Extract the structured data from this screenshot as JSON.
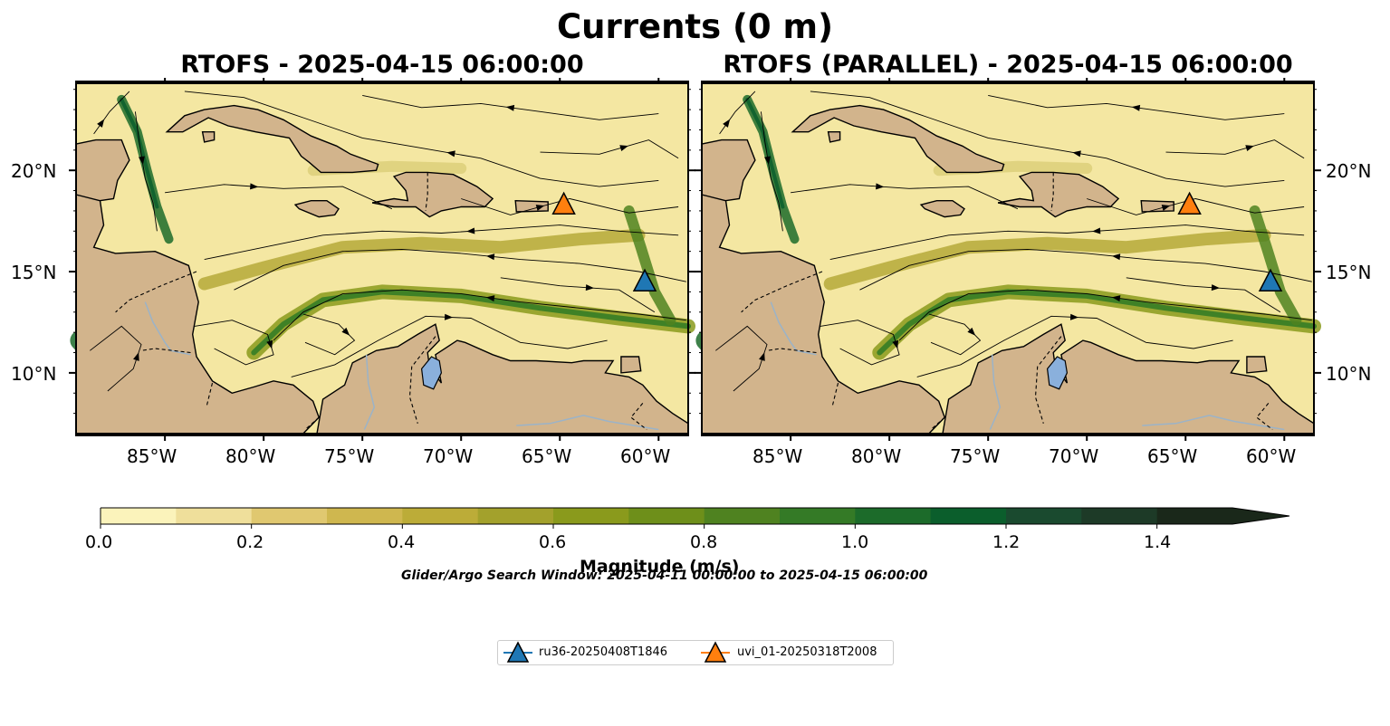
{
  "figure": {
    "title": "Currents (0 m)",
    "window_text": "Glider/Argo Search Window: 2025-04-11 00:00:00 to 2025-04-15 06:00:00"
  },
  "panels": [
    {
      "title": "RTOFS - 2025-04-15 06:00:00",
      "lat_ticks_side": "left"
    },
    {
      "title": "RTOFS (PARALLEL) - 2025-04-15 06:00:00",
      "lat_ticks_side": "right"
    }
  ],
  "map_extent": {
    "lon": [
      -89.5,
      -58.5
    ],
    "lat": [
      7.0,
      24.3
    ]
  },
  "lon_ticks": [
    "85°W",
    "80°W",
    "75°W",
    "70°W",
    "65°W",
    "60°W"
  ],
  "lat_ticks": [
    "20°N",
    "15°N",
    "10°N"
  ],
  "colorbar": {
    "label": "Magnitude (m/s)",
    "ticks": [
      "0.0",
      "0.2",
      "0.4",
      "0.6",
      "0.8",
      "1.0",
      "1.2",
      "1.4"
    ],
    "range": [
      0.0,
      1.5
    ],
    "extend": "max",
    "colors": [
      "#fbf3bb",
      "#efdf9b",
      "#e0c870",
      "#cfb74f",
      "#bcac38",
      "#a3a12c",
      "#8a9a1c",
      "#6e8f1a",
      "#4f8220",
      "#347a26",
      "#1c6b2a",
      "#0b5e2c",
      "#1a4a2f",
      "#1d3a27",
      "#1a281a"
    ]
  },
  "gliders": [
    {
      "name": "ru36-20250408T1846",
      "lon": -60.7,
      "lat": 14.5,
      "color": "#1f77b4"
    },
    {
      "name": "uvi_01-20250318T2008",
      "lon": -64.8,
      "lat": 18.3,
      "color": "#ff7f0e"
    }
  ]
}
